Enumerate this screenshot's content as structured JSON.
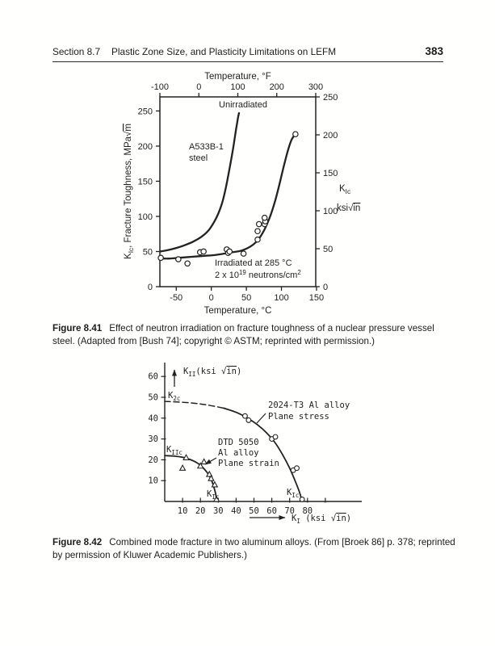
{
  "header": {
    "section": "Section 8.7",
    "title": "Plastic Zone Size, and Plasticity Limitations on LEFM",
    "page_number": "383"
  },
  "figures": {
    "f841": {
      "label": "Figure 8.41",
      "text": "Effect of neutron irradiation on fracture toughness of a nuclear pressure vessel steel. (Adapted from [Bush 74]; copyright © ASTM; reprinted with permission.)"
    },
    "f842": {
      "label": "Figure 8.42",
      "text": "Combined mode fracture in two aluminum alloys. (From [Broek 86] p. 378; reprinted by permission of Kluwer Academic Publishers.)"
    }
  },
  "chart_data": [
    {
      "type": "line",
      "title": "Effect of neutron irradiation on fracture toughness of A533B-1 steel",
      "top_axis": {
        "label": "Temperature, °F",
        "ticks": [
          -100,
          0,
          100,
          200,
          300
        ],
        "range": [
          -100,
          300
        ]
      },
      "bottom_axis": {
        "label": "Temperature, °C",
        "ticks": [
          -50,
          0,
          50,
          100,
          150
        ],
        "range": [
          -73.3,
          148.9
        ]
      },
      "left_axis": {
        "label": "K_{Ic}, Fracture Toughness, MPa√{m}",
        "ticks": [
          0,
          50,
          100,
          150,
          200,
          250
        ],
        "range": [
          0,
          270
        ]
      },
      "right_axis": {
        "label_line1": "K_{Ic}",
        "label_line2": "ksi√{in}",
        "ticks": [
          0,
          50,
          100,
          150,
          200,
          250
        ],
        "range": [
          0,
          250
        ]
      },
      "annotations": {
        "unirradiated": "Unirradiated",
        "steel_lines": [
          "A533B-1",
          "steel"
        ],
        "irradiated_lines": [
          "Irradiated at 285 °C",
          "2 x 10^{19} neutrons/cm^{2}"
        ]
      },
      "series": [
        {
          "name": "Unirradiated curve",
          "kind": "curve",
          "points": [
            [
              -73,
              50
            ],
            [
              -62,
              52
            ],
            [
              -50,
              55
            ],
            [
              -38,
              59
            ],
            [
              -26,
              64
            ],
            [
              -14,
              71
            ],
            [
              -4,
              80
            ],
            [
              4,
              92
            ],
            [
              10,
              104
            ],
            [
              16,
              121
            ],
            [
              21,
              142
            ],
            [
              26,
              168
            ],
            [
              31,
              196
            ],
            [
              35,
              222
            ],
            [
              38,
              240
            ],
            [
              39.5,
              247
            ]
          ]
        },
        {
          "name": "Irradiated curve",
          "kind": "curve",
          "points": [
            [
              -73,
              40
            ],
            [
              -60,
              40
            ],
            [
              -47,
              41
            ],
            [
              -34,
              42
            ],
            [
              -21,
              43
            ],
            [
              -8,
              44
            ],
            [
              5,
              45
            ],
            [
              18,
              47
            ],
            [
              30,
              49
            ],
            [
              42,
              51
            ],
            [
              52,
              55
            ],
            [
              60,
              60
            ],
            [
              67,
              67
            ],
            [
              73,
              76
            ],
            [
              79,
              88
            ],
            [
              85,
              103
            ],
            [
              91,
              122
            ],
            [
              97,
              145
            ],
            [
              103,
              170
            ],
            [
              109,
              193
            ],
            [
              114,
              208
            ],
            [
              118,
              215
            ],
            [
              120,
              219
            ]
          ]
        },
        {
          "name": "Irradiated test data",
          "kind": "scatter",
          "marker": "circle",
          "points": [
            [
              -72,
              41
            ],
            [
              -47,
              39
            ],
            [
              -34,
              33
            ],
            [
              -16,
              49
            ],
            [
              -11,
              50
            ],
            [
              22,
              53
            ],
            [
              24,
              48
            ],
            [
              26,
              50
            ],
            [
              46,
              47
            ],
            [
              66,
              67
            ],
            [
              66,
              79
            ],
            [
              68,
              89
            ],
            [
              76,
              89
            ],
            [
              77,
              93
            ],
            [
              76,
              98
            ],
            [
              120,
              217
            ]
          ]
        }
      ]
    },
    {
      "type": "line",
      "title": "Combined mode fracture envelopes for two aluminum alloys",
      "x_axis": {
        "label": "K_{I} (ksi √{in})",
        "ticks": [
          10,
          20,
          30,
          40,
          50,
          60,
          70,
          80
        ],
        "unlabeled_ticks": [
          90
        ],
        "range": [
          0,
          92
        ]
      },
      "y_axis": {
        "label": "K_{II}(ksi √{in})",
        "ticks": [
          10,
          20,
          30,
          40,
          50,
          60
        ],
        "range": [
          0,
          67
        ]
      },
      "annotations": {
        "k2c": "K_{2c}",
        "kiic": "K_{IIc}",
        "kic_inner": "K_{Ic}",
        "kic_outer": "K_{Ic}",
        "alloy2024_lines": [
          "2024-T3 Al alloy",
          "Plane stress"
        ],
        "dtd_lines": [
          "DTD 5050",
          "Al alloy",
          "Plane strain"
        ]
      },
      "series": [
        {
          "name": "2024-T3 envelope (dashed extrapolation)",
          "kind": "curve",
          "style": "dashed",
          "points": [
            [
              0,
              48
            ],
            [
              8,
              47.7
            ],
            [
              16,
              47.2
            ],
            [
              24,
              46.3
            ],
            [
              33,
              44.8
            ]
          ]
        },
        {
          "name": "2024-T3 envelope, plane stress",
          "kind": "curve",
          "points": [
            [
              33,
              44.8
            ],
            [
              40,
              42.8
            ],
            [
              46,
              40.2
            ],
            [
              52,
              36.8
            ],
            [
              57,
              33
            ],
            [
              62,
              28
            ],
            [
              66,
              22.5
            ],
            [
              70,
              16
            ],
            [
              73,
              10
            ],
            [
              75.5,
              4.5
            ],
            [
              77,
              0
            ]
          ]
        },
        {
          "name": "2024-T3 data",
          "kind": "scatter",
          "marker": "circle",
          "points": [
            [
              45,
              41
            ],
            [
              47,
              39
            ],
            [
              60,
              30
            ],
            [
              62,
              31
            ],
            [
              72,
              15
            ],
            [
              74,
              16
            ],
            [
              77,
              1
            ]
          ]
        },
        {
          "name": "DTD 5050 envelope, plane strain",
          "kind": "curve",
          "points": [
            [
              0,
              22
            ],
            [
              5,
              21.8
            ],
            [
              10,
              21.2
            ],
            [
              14,
              20.2
            ],
            [
              18,
              18.6
            ],
            [
              21,
              16.6
            ],
            [
              24,
              13.6
            ],
            [
              26,
              10.6
            ],
            [
              27.5,
              7
            ],
            [
              28.7,
              3
            ],
            [
              29,
              0
            ]
          ]
        },
        {
          "name": "DTD 5050 data",
          "kind": "scatter",
          "marker": "triangle",
          "points": [
            [
              10,
              16
            ],
            [
              12,
              21
            ],
            [
              20,
              17
            ],
            [
              22,
              19
            ],
            [
              25,
              13
            ],
            [
              26,
              11
            ],
            [
              28,
              8
            ],
            [
              29,
              1
            ]
          ]
        }
      ]
    }
  ]
}
